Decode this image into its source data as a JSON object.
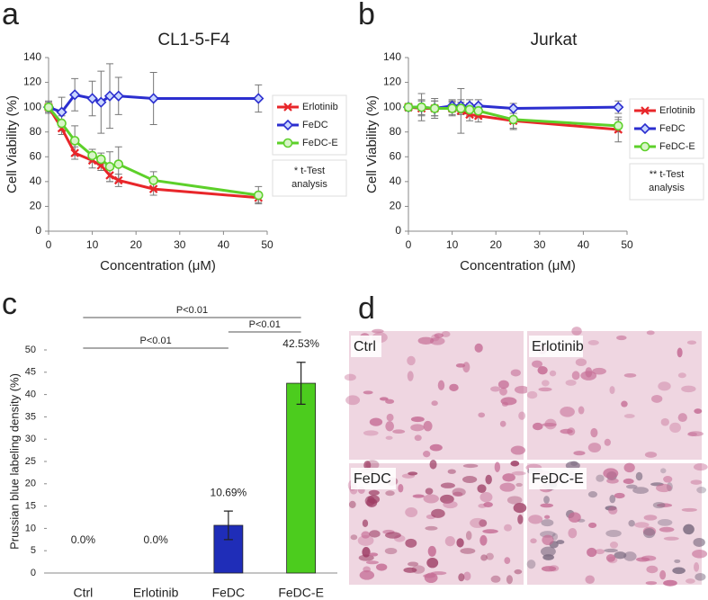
{
  "panels": [
    "a",
    "b",
    "c",
    "d"
  ],
  "chart_data": [
    {
      "type": "line",
      "title": "CL1-5-F4",
      "xlabel": "Concentration (μM)",
      "ylabel": "Cell Viability (%)",
      "x": [
        0,
        3,
        6,
        10,
        12,
        14,
        16,
        24,
        48
      ],
      "xlim": [
        0,
        50
      ],
      "xticks": [
        0,
        10,
        20,
        30,
        40,
        50
      ],
      "ylim": [
        0,
        140
      ],
      "yticks": [
        0,
        20,
        40,
        60,
        80,
        100,
        120,
        140
      ],
      "series": [
        {
          "name": "Erlotinib",
          "color": "#e8262a",
          "marker": "x",
          "values": [
            100,
            83,
            63,
            57,
            53,
            45,
            41,
            34,
            27
          ],
          "errors": [
            2,
            5,
            5,
            6,
            4,
            5,
            5,
            5,
            4
          ]
        },
        {
          "name": "FeDC",
          "color": "#2b2ecf",
          "marker": "diamond",
          "values": [
            100,
            96,
            110,
            107,
            104,
            109,
            109,
            107,
            107
          ],
          "errors": [
            5,
            12,
            13,
            14,
            25,
            26,
            15,
            21,
            11
          ]
        },
        {
          "name": "FeDC-E",
          "color": "#5dd02a",
          "marker": "circle",
          "values": [
            100,
            87,
            73,
            61,
            58,
            52,
            54,
            41,
            29
          ],
          "errors": [
            4,
            6,
            12,
            5,
            5,
            12,
            14,
            7,
            7
          ]
        }
      ],
      "annotation": [
        "* t-Test",
        "analysis"
      ]
    },
    {
      "type": "line",
      "title": "Jurkat",
      "xlabel": "Concentration (μM)",
      "ylabel": "Cell Viability (%)",
      "x": [
        0,
        3,
        6,
        10,
        12,
        14,
        16,
        24,
        48
      ],
      "xlim": [
        0,
        50
      ],
      "xticks": [
        0,
        10,
        20,
        30,
        40,
        50
      ],
      "ylim": [
        0,
        140
      ],
      "yticks": [
        0,
        20,
        40,
        60,
        80,
        100,
        120,
        140
      ],
      "series": [
        {
          "name": "Erlotinib",
          "color": "#e8262a",
          "marker": "x",
          "values": [
            100,
            99,
            99,
            99,
            97,
            94,
            93,
            89,
            82
          ],
          "errors": [
            3,
            6,
            6,
            5,
            18,
            5,
            5,
            6,
            10
          ]
        },
        {
          "name": "FeDC",
          "color": "#2b2ecf",
          "marker": "diamond",
          "values": [
            100,
            100,
            99,
            101,
            101,
            101,
            101,
            99,
            100
          ],
          "errors": [
            3,
            6,
            6,
            5,
            5,
            5,
            5,
            4,
            5
          ]
        },
        {
          "name": "FeDC-E",
          "color": "#5dd02a",
          "marker": "circle",
          "values": [
            100,
            100,
            99,
            99,
            99,
            98,
            97,
            90,
            85
          ],
          "errors": [
            3,
            11,
            8,
            6,
            5,
            5,
            5,
            8,
            5
          ]
        }
      ],
      "annotation": [
        "** t-Test",
        "analysis"
      ]
    },
    {
      "type": "bar",
      "ylabel": "Prussian blue labeling density (%)",
      "categories": [
        "Ctrl",
        "Erlotinib",
        "FeDC",
        "FeDC-E"
      ],
      "values": [
        0,
        0,
        10.69,
        42.53
      ],
      "value_labels": [
        "0.0%",
        "0.0%",
        "10.69%",
        "42.53%"
      ],
      "errors": [
        0,
        0,
        3.2,
        4.7
      ],
      "colors": [
        "#1f2db8",
        "#1f2db8",
        "#1f2db8",
        "#4ccc1e"
      ],
      "ylim": [
        0,
        50
      ],
      "yticks": [
        0,
        5,
        10,
        15,
        20,
        25,
        30,
        35,
        40,
        45,
        50
      ],
      "comparisons": [
        {
          "label": "P<0.01",
          "groups": [
            "Ctrl",
            "FeDC-E"
          ]
        },
        {
          "label": "P<0.01",
          "groups": [
            "FeDC",
            "FeDC-E"
          ]
        },
        {
          "label": "P<0.01",
          "groups": [
            "Ctrl",
            "FeDC"
          ]
        }
      ]
    }
  ],
  "images": {
    "labels": [
      "Ctrl",
      "Erlotinib",
      "FeDC",
      "FeDC-E"
    ]
  }
}
